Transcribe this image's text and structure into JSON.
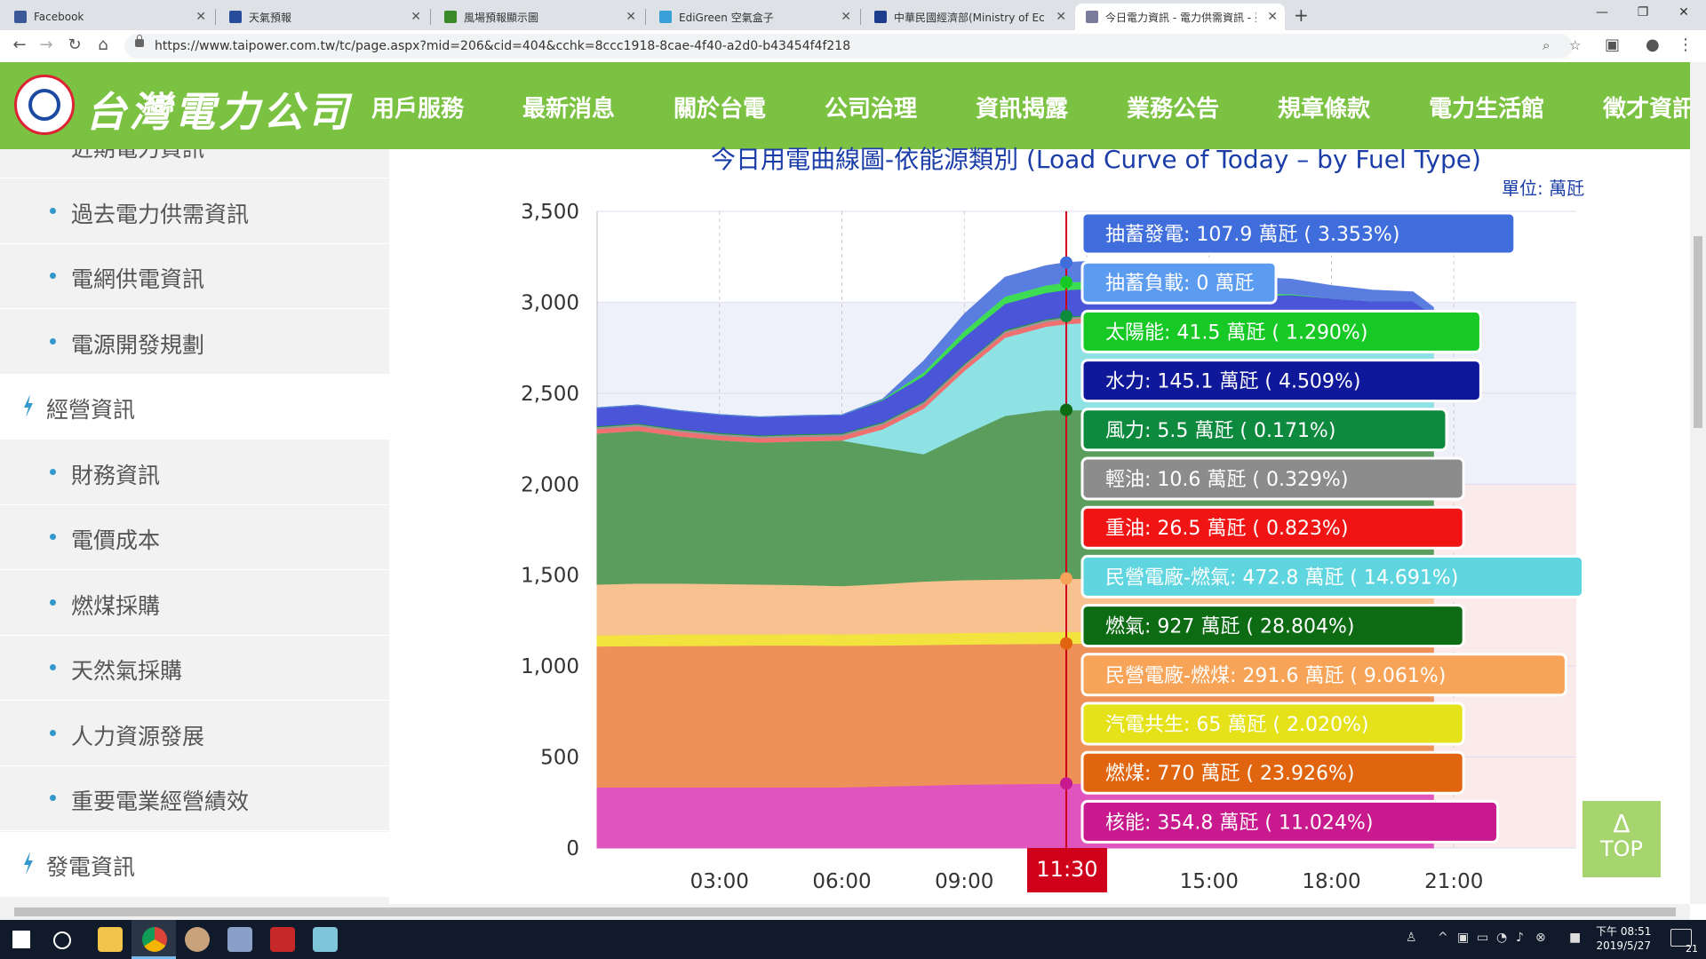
{
  "browser": {
    "tabs": [
      {
        "title": "Facebook",
        "color": "#3b5998"
      },
      {
        "title": "天氣預報",
        "color": "#2a4d9b"
      },
      {
        "title": "風場預報顯示圖",
        "color": "#3a8a2a"
      },
      {
        "title": "EdiGreen 空氣盒子",
        "color": "#3aa0d8"
      },
      {
        "title": "中華民國經濟部(Ministry of Eco",
        "color": "#1e3c8c"
      },
      {
        "title": "今日電力資訊 - 電力供需資訊 - 臺",
        "color": "#7b7b9b"
      }
    ],
    "url": "https://www.taipower.com.tw/tc/page.aspx?mid=206&cid=404&cchk=8ccc1918-8cae-4f40-a2d0-b43454f4f218"
  },
  "site": {
    "logo_text": "台灣電力公司",
    "nav": [
      "用戶服務",
      "最新消息",
      "關於台電",
      "公司治理",
      "資訊揭露",
      "業務公告",
      "規章條款",
      "電力生活館",
      "徵才資訊"
    ]
  },
  "sidebar": [
    {
      "label": "近期電力資訊",
      "type": "sub"
    },
    {
      "label": "過去電力供需資訊",
      "type": "sub"
    },
    {
      "label": "電網供電資訊",
      "type": "sub"
    },
    {
      "label": "電源開發規劃",
      "type": "sub"
    },
    {
      "label": "經營資訊",
      "type": "head"
    },
    {
      "label": "財務資訊",
      "type": "sub"
    },
    {
      "label": "電價成本",
      "type": "sub"
    },
    {
      "label": "燃煤採購",
      "type": "sub"
    },
    {
      "label": "天然氣採購",
      "type": "sub"
    },
    {
      "label": "人力資源發展",
      "type": "sub"
    },
    {
      "label": "重要電業經營績效",
      "type": "sub"
    },
    {
      "label": "發電資訊",
      "type": "head"
    }
  ],
  "chart_data": {
    "type": "area",
    "title": "今日用電曲線圖-依能源類別 (Load Curve of Today – by Fuel Type)",
    "unit_label": "單位: 萬瓩",
    "x_ticks": [
      "03:00",
      "06:00",
      "09:00",
      "15:00",
      "18:00",
      "21:00"
    ],
    "y_ticks": [
      "0",
      "500",
      "1,000",
      "1,500",
      "2,000",
      "2,500",
      "3,000",
      "3,500"
    ],
    "ylim": [
      0,
      3500
    ],
    "x_range_hours": [
      0,
      24
    ],
    "data_end_hour": 20.5,
    "cursor_time": "11:30",
    "cursor_hour": 11.5,
    "x_hours": [
      0,
      1,
      2,
      3,
      4,
      5,
      6,
      7,
      8,
      9,
      10,
      11,
      11.5,
      12,
      13,
      14,
      15,
      16,
      17,
      18,
      19,
      20,
      20.5
    ],
    "series": [
      {
        "name": "核能",
        "color": "#e055bd",
        "values": [
          335,
          335,
          335,
          335,
          335,
          335,
          335,
          340,
          345,
          350,
          352,
          354,
          354.8,
          355,
          355,
          355,
          355,
          355,
          355,
          355,
          355,
          355,
          355
        ]
      },
      {
        "name": "燃煤",
        "color": "#ee9158",
        "values": [
          775,
          776,
          777,
          778,
          780,
          780,
          778,
          775,
          772,
          770,
          770,
          770,
          770,
          770,
          770,
          770,
          770,
          770,
          770,
          770,
          770,
          770,
          770
        ]
      },
      {
        "name": "汽電共生",
        "color": "#f2e33e",
        "values": [
          60,
          62,
          63,
          62,
          60,
          62,
          63,
          63,
          64,
          64,
          64,
          65,
          65,
          65,
          65,
          65,
          65,
          65,
          65,
          65,
          65,
          65,
          65
        ]
      },
      {
        "name": "民營電廠-燃煤",
        "color": "#f7c290",
        "values": [
          280,
          282,
          280,
          278,
          275,
          270,
          265,
          275,
          285,
          290,
          291,
          291,
          291.6,
          291,
          291,
          291,
          291,
          291,
          291,
          291,
          291,
          291,
          291
        ]
      },
      {
        "name": "燃氣",
        "color": "#5a9d5c",
        "values": [
          830,
          840,
          810,
          790,
          780,
          790,
          800,
          750,
          700,
          800,
          900,
          927,
          927,
          927,
          920,
          910,
          890,
          880,
          900,
          920,
          930,
          940,
          940
        ]
      },
      {
        "name": "民營電廠-燃氣",
        "color": "#8ee2e4",
        "values": [
          0,
          0,
          0,
          0,
          0,
          0,
          0,
          100,
          250,
          350,
          430,
          460,
          472.8,
          480,
          480,
          480,
          480,
          480,
          470,
          430,
          410,
          400,
          370
        ]
      },
      {
        "name": "重油",
        "color": "#f07070",
        "values": [
          25,
          25,
          25,
          25,
          25,
          25,
          25,
          25,
          25,
          26,
          26,
          26,
          26.5,
          26,
          26,
          26,
          26,
          26,
          26,
          26,
          26,
          26,
          26
        ]
      },
      {
        "name": "輕油",
        "color": "#999999",
        "values": [
          10,
          10,
          10,
          10,
          10,
          10,
          10,
          10,
          10,
          10,
          10,
          10,
          10.6,
          10,
          10,
          10,
          10,
          10,
          10,
          10,
          10,
          10,
          10
        ]
      },
      {
        "name": "風力",
        "color": "#1e9442",
        "values": [
          5,
          5,
          5,
          5,
          5,
          5,
          5,
          5,
          5,
          5,
          5,
          5,
          5.5,
          5,
          5,
          5,
          5,
          5,
          5,
          5,
          5,
          5,
          5
        ]
      },
      {
        "name": "水力",
        "color": "#4b55d8",
        "values": [
          100,
          100,
          100,
          100,
          100,
          100,
          100,
          120,
          140,
          145,
          145,
          145,
          145.1,
          145,
          140,
          140,
          145,
          150,
          150,
          150,
          145,
          145,
          100
        ]
      },
      {
        "name": "太陽能",
        "color": "#3ddc52",
        "values": [
          0,
          0,
          0,
          0,
          0,
          0,
          0,
          5,
          20,
          35,
          40,
          41,
          41.5,
          42,
          40,
          35,
          25,
          15,
          5,
          0,
          0,
          0,
          0
        ]
      },
      {
        "name": "抽蓄負載",
        "color": "#7ab0f0",
        "values": [
          0,
          0,
          0,
          0,
          0,
          0,
          0,
          0,
          0,
          0,
          0,
          0,
          0,
          0,
          0,
          0,
          0,
          0,
          0,
          0,
          0,
          0,
          0
        ]
      },
      {
        "name": "抽蓄發電",
        "color": "#5a7ee0",
        "values": [
          0,
          0,
          0,
          0,
          0,
          0,
          0,
          0,
          60,
          90,
          105,
          107,
          107.9,
          108,
          100,
          90,
          95,
          90,
          80,
          70,
          60,
          50,
          40
        ]
      }
    ],
    "tooltip": [
      {
        "text": "抽蓄發電: 107.9 萬瓩 ( 3.353%)",
        "bg": "#3f6ddc",
        "fg": "#ffffff"
      },
      {
        "text": "抽蓄負載: 0 萬瓩",
        "bg": "#5b9bf0",
        "fg": "#ffffff"
      },
      {
        "text": "太陽能: 41.5 萬瓩 ( 1.290%)",
        "bg": "#17c925",
        "fg": "#ffffff"
      },
      {
        "text": "水力: 145.1 萬瓩 ( 4.509%)",
        "bg": "#10189a",
        "fg": "#ffffff"
      },
      {
        "text": "風力: 5.5 萬瓩 ( 0.171%)",
        "bg": "#0e8a3e",
        "fg": "#ffffff"
      },
      {
        "text": "輕油: 10.6 萬瓩 ( 0.329%)",
        "bg": "#8c8c8c",
        "fg": "#ffffff"
      },
      {
        "text": "重油: 26.5 萬瓩 ( 0.823%)",
        "bg": "#f01414",
        "fg": "#ffffff"
      },
      {
        "text": "民營電廠-燃氣: 472.8 萬瓩 ( 14.691%)",
        "bg": "#5fd6df",
        "fg": "#ffffff"
      },
      {
        "text": "燃氣: 927 萬瓩 ( 28.804%)",
        "bg": "#0d6b14",
        "fg": "#ffffff"
      },
      {
        "text": "民營電廠-燃煤: 291.6 萬瓩 ( 9.061%)",
        "bg": "#f7a458",
        "fg": "#ffffff"
      },
      {
        "text": "汽電共生: 65 萬瓩 ( 2.020%)",
        "bg": "#e6e21a",
        "fg": "#ffffff"
      },
      {
        "text": "燃煤: 770 萬瓩 ( 23.926%)",
        "bg": "#e0650e",
        "fg": "#ffffff"
      },
      {
        "text": "核能: 354.8 萬瓩 ( 11.024%)",
        "bg": "#c8198e",
        "fg": "#ffffff"
      }
    ]
  },
  "top_button": {
    "arrow": "Δ",
    "label": "TOP"
  },
  "taskbar": {
    "time": "下午 08:51",
    "date": "2019/5/27",
    "notification_count": "21"
  }
}
